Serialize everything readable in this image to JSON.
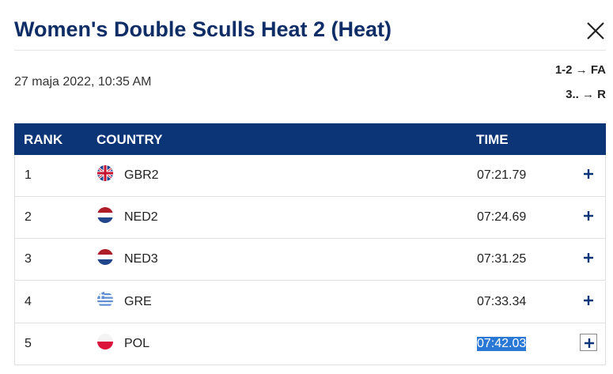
{
  "header": {
    "title": "Women's Double Sculls Heat 2 (Heat)"
  },
  "info": {
    "date": "27 maja 2022, 10:35 AM",
    "progression": [
      "1-2 → FA",
      "3.. → R"
    ]
  },
  "table": {
    "columns": [
      "RANK",
      "COUNTRY",
      "TIME"
    ],
    "rows": [
      [
        "1",
        "GBR2",
        "07:21.79"
      ],
      [
        "2",
        "NED2",
        "07:24.69"
      ],
      [
        "3",
        "NED3",
        "07:31.25"
      ],
      [
        "4",
        "GRE",
        "07:33.34"
      ],
      [
        "5",
        "POL",
        "07:42.03"
      ]
    ]
  }
}
